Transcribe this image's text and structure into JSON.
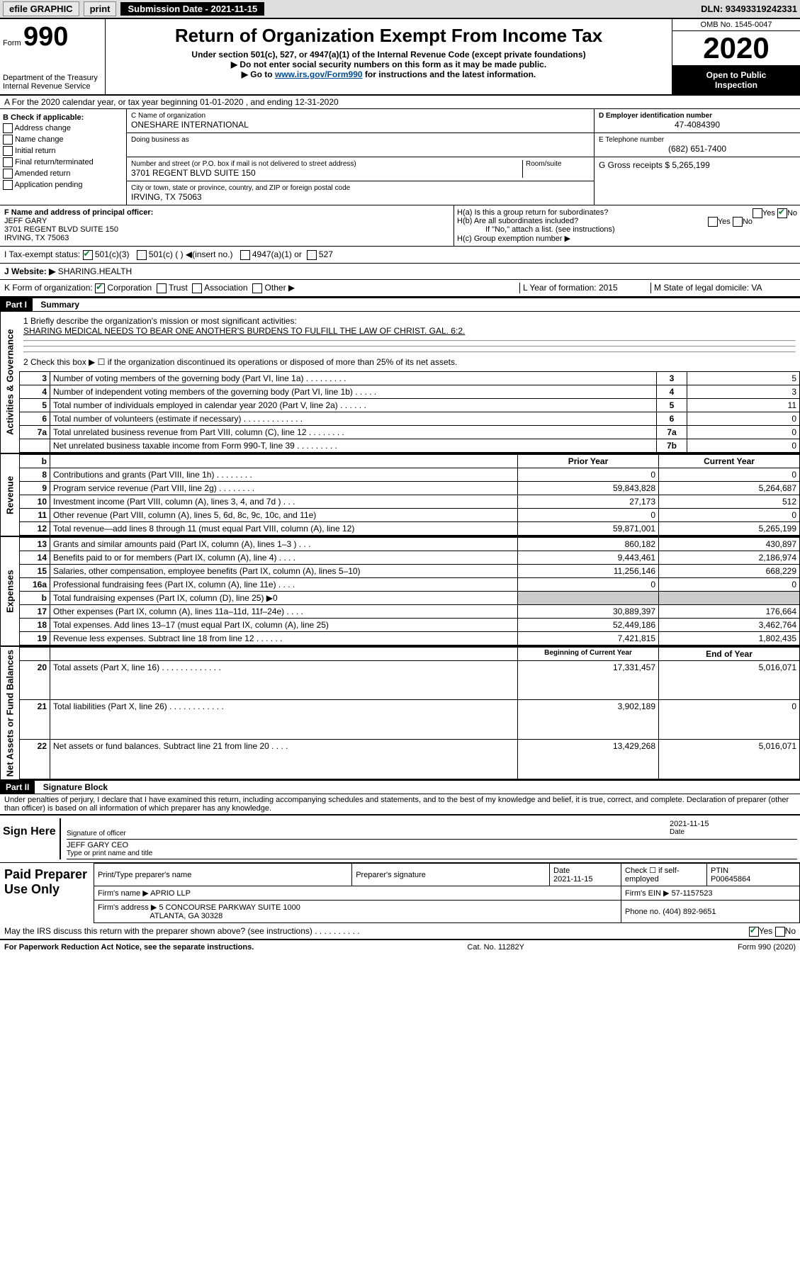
{
  "topbar": {
    "efile": "efile GRAPHIC",
    "print": "print",
    "sub_label": "Submission Date - 2021-11-15",
    "dln": "DLN: 93493319242331"
  },
  "header": {
    "form_word": "Form",
    "form_no": "990",
    "dept": "Department of the Treasury\nInternal Revenue Service",
    "title": "Return of Organization Exempt From Income Tax",
    "sub1": "Under section 501(c), 527, or 4947(a)(1) of the Internal Revenue Code (except private foundations)",
    "sub2": "▶ Do not enter social security numbers on this form as it may be made public.",
    "sub3_a": "▶ Go to ",
    "sub3_link": "www.irs.gov/Form990",
    "sub3_b": " for instructions and the latest information.",
    "omb": "OMB No. 1545-0047",
    "year": "2020",
    "open1": "Open to Public",
    "open2": "Inspection"
  },
  "row_a": "A For the 2020 calendar year, or tax year beginning 01-01-2020    , and ending 12-31-2020",
  "col_b": {
    "title": "B Check if applicable:",
    "items": [
      "Address change",
      "Name change",
      "Initial return",
      "Final return/terminated",
      "Amended return",
      "Application pending"
    ]
  },
  "col_c": {
    "c_label": "C Name of organization",
    "c_name": "ONESHARE INTERNATIONAL",
    "dba_label": "Doing business as",
    "street_label": "Number and street (or P.O. box if mail is not delivered to street address)",
    "room_label": "Room/suite",
    "street": "3701 REGENT BLVD SUITE 150",
    "city_label": "City or town, state or province, country, and ZIP or foreign postal code",
    "city": "IRVING, TX   75063"
  },
  "col_d": {
    "d_label": "D Employer identification number",
    "d_val": "47-4084390",
    "e_label": "E Telephone number",
    "e_val": "(682) 651-7400",
    "g_label": "G Gross receipts $ 5,265,199"
  },
  "section_f": {
    "f_label": "F  Name and address of principal officer:",
    "f_name": "JEFF GARY",
    "f_addr1": "3701 REGENT BLVD SUITE 150",
    "f_addr2": "IRVING, TX   75063",
    "ha": "H(a)  Is this a group return for subordinates?",
    "hb": "H(b)  Are all subordinates included?",
    "hb_note": "If \"No,\" attach a list. (see instructions)",
    "hc": "H(c)  Group exemption number ▶",
    "yes": "Yes",
    "no": "No"
  },
  "tax_row": {
    "i": "I   Tax-exempt status:",
    "a": "501(c)(3)",
    "b": "501(c) (  ) ◀(insert no.)",
    "c": "4947(a)(1) or",
    "d": "527"
  },
  "jrow": {
    "label": "J   Website: ▶",
    "val": "SHARING.HEALTH"
  },
  "krow": {
    "k": "K Form of organization:",
    "corp": "Corporation",
    "trust": "Trust",
    "assoc": "Association",
    "other": "Other ▶",
    "l": "L Year of formation: 2015",
    "m": "M State of legal domicile: VA"
  },
  "part1": {
    "tag": "Part I",
    "title": "Summary"
  },
  "gov": {
    "q1": "1   Briefly describe the organization's mission or most significant activities:",
    "q1_ans": "SHARING MEDICAL NEEDS TO BEAR ONE ANOTHER'S BURDENS TO FULFILL THE LAW OF CHRIST. GAL. 6:2.",
    "q2": "2   Check this box ▶ ☐  if the organization discontinued its operations or disposed of more than 25% of its net assets.",
    "lines": [
      {
        "no": "3",
        "text": "Number of voting members of the governing body (Part VI, line 1a)   .    .    .    .    .    .    .    .    .",
        "box": "3",
        "val": "5"
      },
      {
        "no": "4",
        "text": "Number of independent voting members of the governing body (Part VI, line 1b)   .    .    .    .    .",
        "box": "4",
        "val": "3"
      },
      {
        "no": "5",
        "text": "Total number of individuals employed in calendar year 2020 (Part V, line 2a)   .    .    .    .    .    .",
        "box": "5",
        "val": "11"
      },
      {
        "no": "6",
        "text": "Total number of volunteers (estimate if necessary)   .    .    .    .    .    .    .    .    .    .    .    .    .",
        "box": "6",
        "val": "0"
      },
      {
        "no": "7a",
        "text": "Total unrelated business revenue from Part VIII, column (C), line 12   .    .    .    .    .    .    .    .",
        "box": "7a",
        "val": "0"
      },
      {
        "no": "",
        "text": "Net unrelated business taxable income from Form 990-T, line 39   .    .    .    .    .    .    .    .    .",
        "box": "7b",
        "val": "0"
      }
    ]
  },
  "rev_header": {
    "b": "b",
    "prior": "Prior Year",
    "curr": "Current Year"
  },
  "revenue": [
    {
      "no": "8",
      "text": "Contributions and grants (Part VIII, line 1h)   .    .    .    .    .    .    .    .",
      "prior": "0",
      "curr": "0"
    },
    {
      "no": "9",
      "text": "Program service revenue (Part VIII, line 2g)   .    .    .    .    .    .    .    .",
      "prior": "59,843,828",
      "curr": "5,264,687"
    },
    {
      "no": "10",
      "text": "Investment income (Part VIII, column (A), lines 3, 4, and 7d )   .    .    .",
      "prior": "27,173",
      "curr": "512"
    },
    {
      "no": "11",
      "text": "Other revenue (Part VIII, column (A), lines 5, 6d, 8c, 9c, 10c, and 11e)",
      "prior": "0",
      "curr": "0"
    },
    {
      "no": "12",
      "text": "Total revenue—add lines 8 through 11 (must equal Part VIII, column (A), line 12)",
      "prior": "59,871,001",
      "curr": "5,265,199"
    }
  ],
  "expenses": [
    {
      "no": "13",
      "text": "Grants and similar amounts paid (Part IX, column (A), lines 1–3 )   .    .    .",
      "prior": "860,182",
      "curr": "430,897"
    },
    {
      "no": "14",
      "text": "Benefits paid to or for members (Part IX, column (A), line 4)   .    .    .    .",
      "prior": "9,443,461",
      "curr": "2,186,974"
    },
    {
      "no": "15",
      "text": "Salaries, other compensation, employee benefits (Part IX, column (A), lines 5–10)",
      "prior": "11,256,146",
      "curr": "668,229"
    },
    {
      "no": "16a",
      "text": "Professional fundraising fees (Part IX, column (A), line 11e)   .    .    .    .",
      "prior": "0",
      "curr": "0"
    },
    {
      "no": "b",
      "text": "Total fundraising expenses (Part IX, column (D), line 25) ▶0",
      "prior": "",
      "curr": "",
      "shade": true
    },
    {
      "no": "17",
      "text": "Other expenses (Part IX, column (A), lines 11a–11d, 11f–24e)   .    .    .    .",
      "prior": "30,889,397",
      "curr": "176,664"
    },
    {
      "no": "18",
      "text": "Total expenses. Add lines 13–17 (must equal Part IX, column (A), line 25)",
      "prior": "52,449,186",
      "curr": "3,462,764"
    },
    {
      "no": "19",
      "text": "Revenue less expenses. Subtract line 18 from line 12   .    .    .    .    .    .",
      "prior": "7,421,815",
      "curr": "1,802,435"
    }
  ],
  "net_header": {
    "begin": "Beginning of Current Year",
    "end": "End of Year"
  },
  "net": [
    {
      "no": "20",
      "text": "Total assets (Part X, line 16)    .    .    .    .    .    .    .    .    .    .    .    .    .",
      "prior": "17,331,457",
      "curr": "5,016,071"
    },
    {
      "no": "21",
      "text": "Total liabilities (Part X, line 26)    .    .    .    .    .    .    .    .    .    .    .    .",
      "prior": "3,902,189",
      "curr": "0"
    },
    {
      "no": "22",
      "text": "Net assets or fund balances. Subtract line 21 from line 20    .    .    .    .",
      "prior": "13,429,268",
      "curr": "5,016,071"
    }
  ],
  "part2": {
    "tag": "Part II",
    "title": "Signature Block",
    "perjury": "Under penalties of perjury, I declare that I have examined this return, including accompanying schedules and statements, and to the best of my knowledge and belief, it is true, correct, and complete. Declaration of preparer (other than officer) is based on all information of which preparer has any knowledge."
  },
  "sign": {
    "here": "Sign Here",
    "sig_label": "Signature of officer",
    "date_label": "Date",
    "date": "2021-11-15",
    "name": "JEFF GARY CEO",
    "name_label": "Type or print name and title"
  },
  "paid": {
    "title": "Paid Preparer Use Only",
    "col1": "Print/Type preparer's name",
    "col2": "Preparer's signature",
    "col3": "Date",
    "date": "2021-11-15",
    "col4": "Check ☐ if self-employed",
    "col5": "PTIN",
    "ptin": "P00645864",
    "firm_name_label": "Firm's name    ▶",
    "firm_name": "APRIO LLP",
    "firm_ein_label": "Firm's EIN ▶",
    "firm_ein": "57-1157523",
    "firm_addr_label": "Firm's address ▶",
    "firm_addr1": "5 CONCOURSE PARKWAY SUITE 1000",
    "firm_addr2": "ATLANTA, GA   30328",
    "phone_label": "Phone no.",
    "phone": "(404) 892-9651"
  },
  "discuss": "May the IRS discuss this return with the preparer shown above? (see instructions)   .    .    .    .    .    .    .    .    .    .",
  "footer": {
    "left": "For Paperwork Reduction Act Notice, see the separate instructions.",
    "mid": "Cat. No. 11282Y",
    "right": "Form 990 (2020)"
  },
  "labels": {
    "side_gov": "Activities & Governance",
    "side_rev": "Revenue",
    "side_exp": "Expenses",
    "side_net": "Net Assets or Fund Balances"
  }
}
